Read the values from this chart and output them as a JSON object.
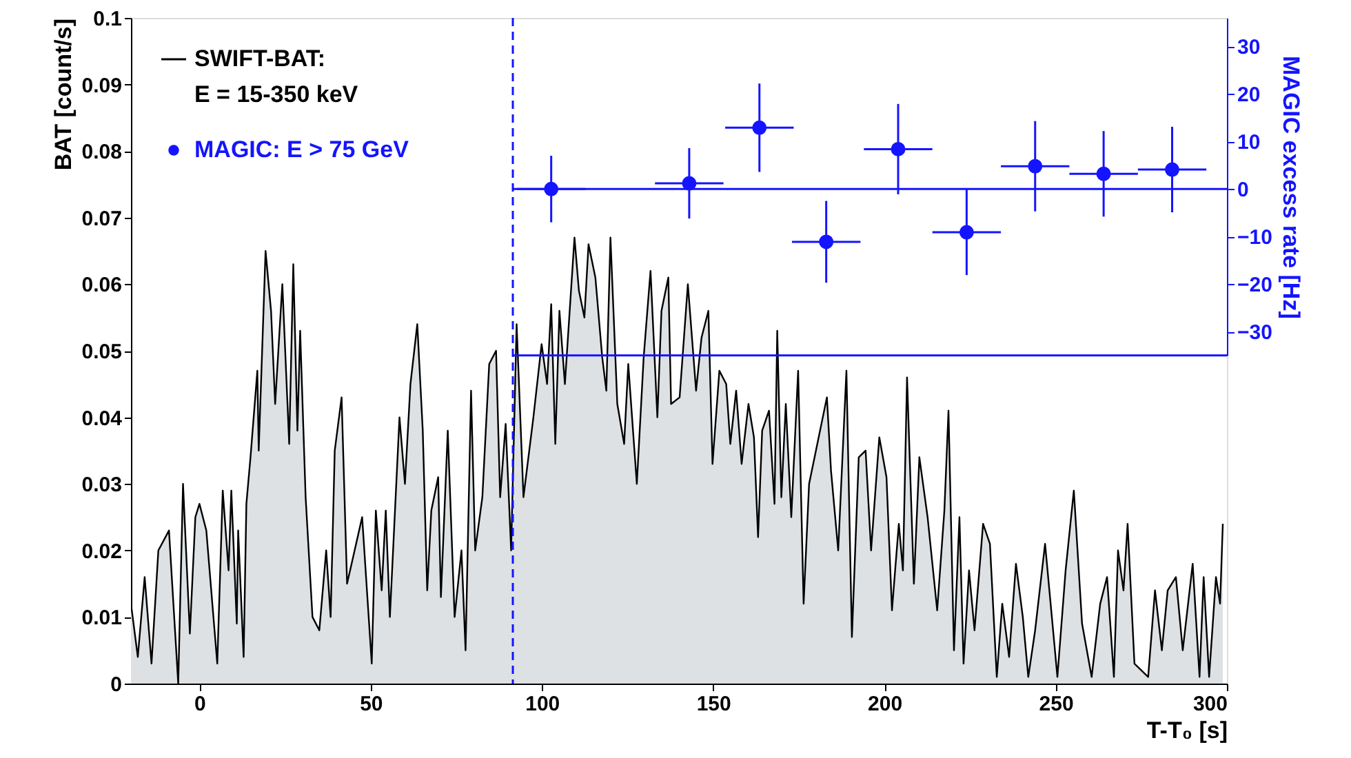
{
  "chart_data": {
    "type": "area",
    "xlabel": "T-T₀ [s]",
    "ylabel": "BAT [count/s]",
    "y2label": "MAGIC excess rate [Hz]",
    "xlim": [
      -20,
      300
    ],
    "xticks": [
      0,
      50,
      100,
      150,
      200,
      250,
      300
    ],
    "ylim": [
      0,
      0.1
    ],
    "yticks": [
      0,
      0.01,
      0.02,
      0.03,
      0.04,
      0.05,
      0.06,
      0.07,
      0.08,
      0.09,
      0.1
    ],
    "y2lim": [
      -35,
      36
    ],
    "y2ticks": [
      -30,
      -20,
      -10,
      0,
      10,
      20,
      30
    ],
    "legend": "top left",
    "grid": false,
    "series": [
      {
        "name": "SWIFT-BAT:\nE = 15-350 keV",
        "color": "#000000",
        "x": [
          -20,
          -18,
          -16,
          -14,
          -12,
          -8.9,
          -6.2,
          -4.8,
          -2.8,
          -1.2,
          0,
          2,
          5.2,
          6.8,
          8.5,
          9.3,
          10.9,
          11.3,
          12.9,
          13.7,
          14.9,
          16.9,
          17.3,
          19.3,
          20.9,
          22.1,
          24.2,
          26.2,
          27.4,
          28.6,
          29.4,
          31,
          33,
          35,
          37,
          38.3,
          39.5,
          41.5,
          43.1,
          47.5,
          50.3,
          51.5,
          53.2,
          54.4,
          55.6,
          58.4,
          60,
          61.6,
          63.6,
          65.2,
          66.5,
          67.7,
          69.7,
          70.5,
          72.5,
          74.5,
          76.5,
          77.7,
          79.3,
          80.5,
          82.6,
          84.6,
          86.6,
          87.8,
          89.4,
          91,
          92.6,
          94.6,
          97.5,
          99.9,
          101.5,
          102.7,
          103.9,
          105.1,
          106.7,
          109.5,
          110.8,
          112.4,
          113.6,
          115.6,
          117.6,
          118.8,
          120,
          122,
          124,
          125.2,
          127.7,
          129.7,
          131.7,
          133.7,
          134.9,
          136.9,
          137.7,
          140.2,
          142.6,
          145,
          146.6,
          148.6,
          149.8,
          151.8,
          153.8,
          155,
          156.7,
          158.3,
          160.3,
          161.9,
          163.1,
          164.3,
          166.3,
          167.9,
          168.7,
          169.9,
          171.2,
          172.8,
          174.8,
          176.4,
          178,
          183.2,
          184.4,
          186.5,
          188.9,
          190.5,
          192.5,
          194.5,
          196.1,
          198.5,
          200.6,
          202.2,
          204.2,
          205.4,
          206.6,
          208.6,
          210.2,
          212.6,
          215.4,
          217.5,
          218.7,
          220.3,
          221.9,
          223.1,
          224.7,
          226.3,
          228.8,
          230.8,
          232.8,
          234.4,
          236.4,
          238.4,
          240.4,
          242,
          244,
          246.9,
          250.5,
          252.9,
          255.3,
          257.7,
          260.5,
          263,
          265,
          267,
          268.2,
          269.8,
          271,
          273,
          277,
          279,
          281,
          282.7,
          285.1,
          287.1,
          290,
          292,
          293.2,
          294.8,
          296.8,
          298,
          298.8
        ],
        "values": [
          0.012,
          0.004,
          0.016,
          0.003,
          0.02,
          0.023,
          0.0,
          0.03,
          0.0075,
          0.025,
          0.027,
          0.023,
          0.003,
          0.029,
          0.017,
          0.029,
          0.009,
          0.023,
          0.004,
          0.027,
          0.034,
          0.047,
          0.035,
          0.065,
          0.056,
          0.042,
          0.06,
          0.036,
          0.063,
          0.038,
          0.053,
          0.028,
          0.01,
          0.008,
          0.02,
          0.01,
          0.035,
          0.043,
          0.015,
          0.025,
          0.003,
          0.026,
          0.014,
          0.026,
          0.01,
          0.04,
          0.03,
          0.045,
          0.054,
          0.038,
          0.014,
          0.026,
          0.031,
          0.013,
          0.038,
          0.01,
          0.02,
          0.005,
          0.044,
          0.02,
          0.028,
          0.048,
          0.05,
          0.028,
          0.039,
          0.02,
          0.054,
          0.028,
          0.04,
          0.051,
          0.045,
          0.057,
          0.036,
          0.056,
          0.045,
          0.067,
          0.059,
          0.055,
          0.066,
          0.061,
          0.049,
          0.044,
          0.067,
          0.042,
          0.036,
          0.048,
          0.03,
          0.049,
          0.062,
          0.04,
          0.056,
          0.061,
          0.042,
          0.043,
          0.06,
          0.044,
          0.052,
          0.056,
          0.033,
          0.047,
          0.045,
          0.036,
          0.044,
          0.033,
          0.042,
          0.037,
          0.022,
          0.038,
          0.041,
          0.027,
          0.053,
          0.028,
          0.042,
          0.025,
          0.047,
          0.012,
          0.03,
          0.043,
          0.032,
          0.02,
          0.047,
          0.007,
          0.034,
          0.035,
          0.02,
          0.037,
          0.031,
          0.011,
          0.024,
          0.017,
          0.046,
          0.015,
          0.034,
          0.025,
          0.011,
          0.026,
          0.041,
          0.005,
          0.025,
          0.003,
          0.017,
          0.008,
          0.024,
          0.021,
          0.001,
          0.012,
          0.004,
          0.018,
          0.01,
          0.001,
          0.008,
          0.021,
          0.001,
          0.017,
          0.029,
          0.009,
          0.001,
          0.012,
          0.016,
          0.001,
          0.02,
          0.014,
          0.024,
          0.003,
          0.001,
          0.014,
          0.005,
          0.014,
          0.016,
          0.005,
          0.018,
          0.001,
          0.016,
          0.001,
          0.016,
          0.012,
          0.024
        ]
      },
      {
        "name": "MAGIC: E > 75 GeV",
        "type": "scatter",
        "axis": "y2",
        "color": "#1414ff",
        "marker": "circle",
        "x": [
          102.7,
          143,
          163.5,
          183,
          204,
          224,
          244,
          264,
          284
        ],
        "values": [
          0,
          1.2,
          12.9,
          -11.1,
          8.4,
          -9.1,
          4.8,
          3.2,
          4.1
        ],
        "errors": [
          7,
          7.4,
          9.3,
          8.6,
          9.5,
          9,
          9.5,
          9,
          9
        ],
        "xerrors": [
          10,
          10,
          10,
          10,
          10,
          10,
          10,
          10,
          10
        ]
      }
    ],
    "ref_lines": [
      {
        "axis": "x",
        "value": 91.5,
        "color": "#1414ff",
        "line_style": "dashed"
      },
      {
        "axis": "y2",
        "value": 0,
        "color": "#1414ff",
        "line_style": "solid"
      },
      {
        "axis": "y2",
        "value": -35,
        "color": "#1414ff",
        "line_style": "solid"
      }
    ]
  }
}
